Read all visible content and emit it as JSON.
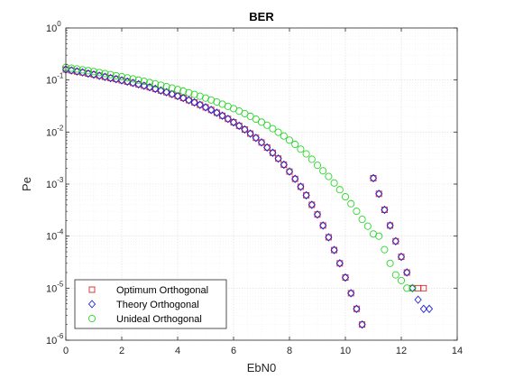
{
  "chart_data": {
    "type": "scatter",
    "title": "BER",
    "xlabel": "EbN0",
    "ylabel": "Pe",
    "xlim": [
      0,
      14
    ],
    "ylim": [
      1e-06,
      1
    ],
    "yscale": "log",
    "grid": true,
    "minor_grid": true,
    "x_ticks": [
      "0",
      "2",
      "4",
      "6",
      "8",
      "10",
      "12",
      "14"
    ],
    "y_ticks": [
      {
        "base": "10",
        "exp": "-6"
      },
      {
        "base": "10",
        "exp": "-5"
      },
      {
        "base": "10",
        "exp": "-4"
      },
      {
        "base": "10",
        "exp": "-3"
      },
      {
        "base": "10",
        "exp": "-2"
      },
      {
        "base": "10",
        "exp": "-1"
      },
      {
        "base": "10",
        "exp": "0"
      }
    ],
    "legend_position": "bottom-left",
    "series": [
      {
        "name": "Optimum Orthogonal",
        "marker": "square",
        "color": "#d62728",
        "x": [
          0,
          0.2,
          0.4,
          0.6,
          0.8,
          1.0,
          1.2,
          1.4,
          1.6,
          1.8,
          2.0,
          2.2,
          2.4,
          2.6,
          2.8,
          3.0,
          3.2,
          3.4,
          3.6,
          3.8,
          4.0,
          4.2,
          4.4,
          4.6,
          4.8,
          5.0,
          5.2,
          5.4,
          5.6,
          5.8,
          6.0,
          6.2,
          6.4,
          6.6,
          6.8,
          7.0,
          7.2,
          7.4,
          7.6,
          7.8,
          8.0,
          8.2,
          8.4,
          8.6,
          8.8,
          9.0,
          9.2,
          9.4,
          9.6,
          9.8,
          10.0,
          10.2,
          10.4,
          10.6,
          10.8,
          11.0,
          11.2,
          11.4,
          11.6,
          11.8,
          12.0,
          12.2,
          12.4,
          12.6,
          12.8
        ],
        "y": [
          0.159,
          0.153,
          0.146,
          0.14,
          0.133,
          0.127,
          0.121,
          0.115,
          0.109,
          0.104,
          0.0985,
          0.0932,
          0.0879,
          0.0827,
          0.0776,
          0.0726,
          0.0677,
          0.0629,
          0.0583,
          0.0537,
          0.0493,
          0.0451,
          0.041,
          0.0371,
          0.0334,
          0.0299,
          0.0266,
          0.0235,
          0.0206,
          0.0179,
          0.0154,
          0.0132,
          0.0112,
          0.00934,
          0.00773,
          0.00631,
          0.00506,
          0.004,
          0.00309,
          0.00235,
          0.00174,
          0.00126,
          0.00089,
          0.00061,
          0.0004,
          0.00026,
          0.00016,
          9.5e-05,
          5.4e-05,
          3e-05,
          1.6e-05,
          8e-06,
          4e-06,
          2e-06,
          1e-06,
          0.0013,
          0.00065,
          0.00032,
          0.00016,
          8e-05,
          4e-05,
          2e-05,
          1e-05,
          1e-05,
          1e-05
        ]
      },
      {
        "name": "Theory Orthogonal",
        "marker": "diamond",
        "color": "#1f1fd6",
        "x": [
          0,
          0.2,
          0.4,
          0.6,
          0.8,
          1.0,
          1.2,
          1.4,
          1.6,
          1.8,
          2.0,
          2.2,
          2.4,
          2.6,
          2.8,
          3.0,
          3.2,
          3.4,
          3.6,
          3.8,
          4.0,
          4.2,
          4.4,
          4.6,
          4.8,
          5.0,
          5.2,
          5.4,
          5.6,
          5.8,
          6.0,
          6.2,
          6.4,
          6.6,
          6.8,
          7.0,
          7.2,
          7.4,
          7.6,
          7.8,
          8.0,
          8.2,
          8.4,
          8.6,
          8.8,
          9.0,
          9.2,
          9.4,
          9.6,
          9.8,
          10.0,
          10.2,
          10.4,
          10.6,
          10.8,
          11.0,
          11.2,
          11.4,
          11.6,
          11.8,
          12.0,
          12.2,
          12.4,
          12.6,
          12.8,
          13.0
        ],
        "y": [
          0.159,
          0.153,
          0.146,
          0.14,
          0.133,
          0.127,
          0.121,
          0.115,
          0.109,
          0.104,
          0.0985,
          0.0932,
          0.0879,
          0.0827,
          0.0776,
          0.0726,
          0.0677,
          0.0629,
          0.0583,
          0.0537,
          0.0493,
          0.0451,
          0.041,
          0.0371,
          0.0334,
          0.0299,
          0.0266,
          0.0235,
          0.0206,
          0.0179,
          0.0154,
          0.0132,
          0.0112,
          0.00934,
          0.00773,
          0.00631,
          0.00506,
          0.004,
          0.00309,
          0.00235,
          0.00174,
          0.00126,
          0.00089,
          0.00061,
          0.0004,
          0.00026,
          0.00016,
          9.5e-05,
          5.4e-05,
          3e-05,
          1.6e-05,
          8e-06,
          4e-06,
          2e-06,
          1e-06,
          0.0013,
          0.00065,
          0.00032,
          0.00016,
          8e-05,
          4e-05,
          2e-05,
          1e-05,
          6e-06,
          4e-06,
          4e-06
        ]
      },
      {
        "name": "Unideal Orthogonal",
        "marker": "circle",
        "color": "#2bd62b",
        "x": [
          0,
          0.2,
          0.4,
          0.6,
          0.8,
          1.0,
          1.2,
          1.4,
          1.6,
          1.8,
          2.0,
          2.2,
          2.4,
          2.6,
          2.8,
          3.0,
          3.2,
          3.4,
          3.6,
          3.8,
          4.0,
          4.2,
          4.4,
          4.6,
          4.8,
          5.0,
          5.2,
          5.4,
          5.6,
          5.8,
          6.0,
          6.2,
          6.4,
          6.6,
          6.8,
          7.0,
          7.2,
          7.4,
          7.6,
          7.8,
          8.0,
          8.2,
          8.4,
          8.6,
          8.8,
          9.0,
          9.2,
          9.4,
          9.6,
          9.8,
          10.0,
          10.2,
          10.4,
          10.6,
          10.8,
          11.0,
          11.2,
          11.4,
          11.6,
          11.8,
          12.0,
          12.2,
          12.4
        ],
        "y": [
          0.175,
          0.169,
          0.163,
          0.157,
          0.151,
          0.145,
          0.139,
          0.133,
          0.127,
          0.121,
          0.116,
          0.11,
          0.105,
          0.0998,
          0.0946,
          0.0895,
          0.0845,
          0.0796,
          0.0748,
          0.0701,
          0.0656,
          0.0612,
          0.0569,
          0.0528,
          0.0488,
          0.045,
          0.0413,
          0.0378,
          0.0344,
          0.0312,
          0.0282,
          0.0253,
          0.0226,
          0.0201,
          0.0177,
          0.0155,
          0.0135,
          0.0116,
          0.0099,
          0.0084,
          0.007,
          0.0058,
          0.0047,
          0.0038,
          0.003,
          0.0023,
          0.0018,
          0.0014,
          0.00105,
          0.00078,
          0.00057,
          0.00042,
          0.0003,
          0.00021,
          0.000155,
          0.00011,
          0.0001,
          5.5e-05,
          3e-05,
          1.8e-05,
          1.4e-05,
          1e-05,
          1e-05
        ]
      }
    ]
  }
}
